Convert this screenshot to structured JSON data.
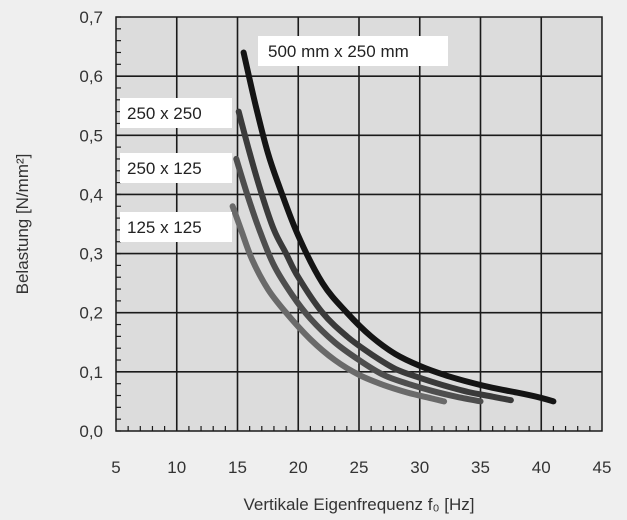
{
  "chart_data": {
    "type": "line",
    "xlabel": "Vertikale Eigenfrequenz f₀ [Hz]",
    "ylabel": "Belastung  [N/mm²]",
    "xlim": [
      5,
      45
    ],
    "ylim": [
      0,
      0.7
    ],
    "x_ticks": [
      "5",
      "10",
      "15",
      "20",
      "25",
      "30",
      "35",
      "40",
      "45"
    ],
    "y_ticks": [
      "0,0",
      "0,1",
      "0,2",
      "0,3",
      "0,4",
      "0,5",
      "0,6",
      "0,7"
    ],
    "grid": true,
    "series": [
      {
        "name": "500 mm x 250 mm",
        "color": "#141414",
        "points": [
          [
            15.5,
            0.64
          ],
          [
            16.5,
            0.55
          ],
          [
            17.5,
            0.47
          ],
          [
            18.5,
            0.41
          ],
          [
            20,
            0.33
          ],
          [
            22,
            0.25
          ],
          [
            24,
            0.2
          ],
          [
            26,
            0.16
          ],
          [
            28,
            0.13
          ],
          [
            30,
            0.11
          ],
          [
            32,
            0.095
          ],
          [
            34,
            0.083
          ],
          [
            36,
            0.073
          ],
          [
            38,
            0.065
          ],
          [
            40,
            0.056
          ],
          [
            41,
            0.05
          ]
        ]
      },
      {
        "name": "250 x 250",
        "color": "#3a3a3a",
        "points": [
          [
            15.1,
            0.54
          ],
          [
            16,
            0.47
          ],
          [
            17,
            0.4
          ],
          [
            18,
            0.34
          ],
          [
            19,
            0.3
          ],
          [
            20,
            0.26
          ],
          [
            22,
            0.2
          ],
          [
            24,
            0.16
          ],
          [
            26,
            0.13
          ],
          [
            28,
            0.105
          ],
          [
            30,
            0.09
          ],
          [
            32,
            0.077
          ],
          [
            34,
            0.066
          ],
          [
            36,
            0.058
          ],
          [
            37.5,
            0.052
          ]
        ]
      },
      {
        "name": "250 x 125",
        "color": "#4e4e4e",
        "points": [
          [
            14.9,
            0.46
          ],
          [
            15.8,
            0.4
          ],
          [
            16.8,
            0.34
          ],
          [
            18,
            0.28
          ],
          [
            19.5,
            0.23
          ],
          [
            21,
            0.19
          ],
          [
            23,
            0.15
          ],
          [
            25,
            0.12
          ],
          [
            27,
            0.095
          ],
          [
            29,
            0.08
          ],
          [
            31,
            0.068
          ],
          [
            33,
            0.058
          ],
          [
            35,
            0.05
          ]
        ]
      },
      {
        "name": "125 x 125",
        "color": "#6a6a6a",
        "points": [
          [
            14.6,
            0.38
          ],
          [
            15.3,
            0.34
          ],
          [
            16.2,
            0.29
          ],
          [
            17.5,
            0.24
          ],
          [
            19,
            0.2
          ],
          [
            21,
            0.155
          ],
          [
            23,
            0.12
          ],
          [
            25,
            0.095
          ],
          [
            27,
            0.078
          ],
          [
            29,
            0.065
          ],
          [
            31,
            0.055
          ],
          [
            32,
            0.05
          ]
        ]
      }
    ]
  }
}
